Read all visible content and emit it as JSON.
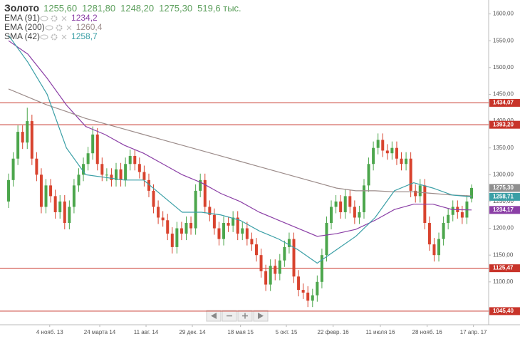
{
  "chart_data": {
    "type": "candlestick",
    "title": "Золото",
    "header_values": [
      "1255,60",
      "1281,80",
      "1248,20",
      "1275,30",
      "519,6 тыс."
    ],
    "header_color": "#5a9e5a",
    "up_color": "#4ca64c",
    "down_color": "#d8432e",
    "xlim": [
      0,
      99
    ],
    "xticks": [
      {
        "value": 8.8,
        "label": "4 нояб. 13"
      },
      {
        "value": 19.5,
        "label": "24 марта 14"
      },
      {
        "value": 29.4,
        "label": "11 авг. 14"
      },
      {
        "value": 39.3,
        "label": "29 дек. 14"
      },
      {
        "value": 49.6,
        "label": "18 мая 15"
      },
      {
        "value": 59.4,
        "label": "5 окт. 15"
      },
      {
        "value": 69.4,
        "label": "22 февр. 16"
      },
      {
        "value": 79.5,
        "label": "11 июля 16"
      },
      {
        "value": 89.5,
        "label": "28 нояб. 16"
      },
      {
        "value": 99.4,
        "label": "17 апр. 17"
      }
    ],
    "ylim": [
      1020,
      1626
    ],
    "yticks": [
      {
        "value": 1600,
        "label": "1600,00"
      },
      {
        "value": 1550,
        "label": "1550,00"
      },
      {
        "value": 1500,
        "label": "1500,00"
      },
      {
        "value": 1450,
        "label": "1450,00"
      },
      {
        "value": 1400,
        "label": "1400,00"
      },
      {
        "value": 1350,
        "label": "1350,00"
      },
      {
        "value": 1300,
        "label": "1300,00"
      },
      {
        "value": 1250,
        "label": "1250,00"
      },
      {
        "value": 1200,
        "label": "1200,00"
      },
      {
        "value": 1150,
        "label": "1150,00"
      },
      {
        "value": 1100,
        "label": "1100,00"
      }
    ],
    "open": [
      1250,
      1290,
      1330,
      1380,
      1360,
      1400,
      1330,
      1300,
      1240,
      1280,
      1260,
      1230,
      1250,
      1210,
      1240,
      1280,
      1300,
      1320,
      1340,
      1375,
      1320,
      1300,
      1300,
      1290,
      1310,
      1290,
      1320,
      1335,
      1320,
      1305,
      1290,
      1270,
      1240,
      1220,
      1215,
      1190,
      1165,
      1200,
      1190,
      1210,
      1200,
      1270,
      1290,
      1240,
      1225,
      1200,
      1180,
      1210,
      1205,
      1220,
      1190,
      1200,
      1180,
      1170,
      1150,
      1120,
      1095,
      1130,
      1115,
      1140,
      1165,
      1180,
      1110,
      1085,
      1080,
      1065,
      1075,
      1100,
      1150,
      1210,
      1240,
      1250,
      1230,
      1260,
      1240,
      1220,
      1230,
      1280,
      1320,
      1350,
      1365,
      1345,
      1340,
      1350,
      1330,
      1320,
      1330,
      1270,
      1260,
      1280,
      1210,
      1170,
      1150,
      1180,
      1210,
      1225,
      1240,
      1230,
      1220,
      1255.6
    ],
    "high": [
      1302,
      1342,
      1392,
      1392,
      1425,
      1412,
      1342,
      1312,
      1292,
      1292,
      1272,
      1262,
      1262,
      1252,
      1292,
      1312,
      1332,
      1352,
      1390,
      1387,
      1332,
      1312,
      1312,
      1322,
      1322,
      1332,
      1347,
      1347,
      1332,
      1317,
      1302,
      1282,
      1252,
      1232,
      1227,
      1202,
      1212,
      1212,
      1222,
      1222,
      1282,
      1302,
      1302,
      1252,
      1237,
      1212,
      1222,
      1222,
      1232,
      1232,
      1212,
      1212,
      1192,
      1182,
      1162,
      1132,
      1142,
      1142,
      1152,
      1177,
      1192,
      1192,
      1122,
      1097,
      1092,
      1087,
      1112,
      1162,
      1222,
      1252,
      1262,
      1262,
      1272,
      1272,
      1252,
      1242,
      1292,
      1332,
      1362,
      1377,
      1377,
      1357,
      1362,
      1362,
      1342,
      1342,
      1342,
      1282,
      1292,
      1292,
      1222,
      1182,
      1192,
      1222,
      1237,
      1252,
      1252,
      1242,
      1262,
      1281.8
    ],
    "low": [
      1238,
      1278,
      1318,
      1348,
      1348,
      1318,
      1288,
      1228,
      1228,
      1248,
      1218,
      1218,
      1198,
      1198,
      1228,
      1268,
      1288,
      1308,
      1328,
      1308,
      1288,
      1288,
      1278,
      1278,
      1278,
      1278,
      1308,
      1308,
      1293,
      1278,
      1258,
      1228,
      1208,
      1203,
      1178,
      1153,
      1153,
      1178,
      1178,
      1188,
      1188,
      1258,
      1228,
      1213,
      1188,
      1168,
      1168,
      1193,
      1193,
      1178,
      1178,
      1168,
      1158,
      1138,
      1108,
      1083,
      1083,
      1103,
      1103,
      1128,
      1153,
      1098,
      1073,
      1068,
      1053,
      1053,
      1063,
      1088,
      1138,
      1198,
      1228,
      1218,
      1218,
      1228,
      1208,
      1208,
      1218,
      1268,
      1308,
      1338,
      1333,
      1328,
      1328,
      1318,
      1308,
      1308,
      1258,
      1248,
      1248,
      1198,
      1158,
      1138,
      1138,
      1168,
      1198,
      1213,
      1218,
      1208,
      1208,
      1248.2
    ],
    "close": [
      1290,
      1330,
      1380,
      1360,
      1400,
      1330,
      1300,
      1240,
      1280,
      1260,
      1230,
      1250,
      1210,
      1240,
      1280,
      1300,
      1320,
      1340,
      1375,
      1320,
      1300,
      1300,
      1290,
      1310,
      1290,
      1320,
      1335,
      1320,
      1305,
      1290,
      1270,
      1240,
      1220,
      1215,
      1190,
      1165,
      1200,
      1190,
      1210,
      1200,
      1270,
      1290,
      1240,
      1225,
      1200,
      1180,
      1210,
      1205,
      1220,
      1190,
      1200,
      1180,
      1170,
      1150,
      1120,
      1095,
      1130,
      1115,
      1140,
      1165,
      1180,
      1110,
      1085,
      1080,
      1065,
      1075,
      1100,
      1150,
      1210,
      1240,
      1250,
      1230,
      1260,
      1240,
      1220,
      1230,
      1280,
      1320,
      1350,
      1365,
      1345,
      1340,
      1350,
      1330,
      1320,
      1330,
      1270,
      1260,
      1280,
      1210,
      1170,
      1150,
      1180,
      1210,
      1225,
      1240,
      1230,
      1220,
      1250,
      1275.3
    ],
    "indicators": [
      {
        "name": "EMA (91)",
        "legend_value": "1234,2",
        "color": "#8b3fa6",
        "values": [
          1550,
          1525,
          1480,
          1430,
          1390,
          1375,
          1355,
          1340,
          1320,
          1300,
          1285,
          1265,
          1250,
          1230,
          1215,
          1200,
          1185,
          1190,
          1198,
          1215,
          1235,
          1245,
          1245,
          1235,
          1234.2
        ]
      },
      {
        "name": "EMA (200)",
        "legend_value": "1260,4",
        "color": "#9c8c8a",
        "values": [
          1460,
          1445,
          1430,
          1418,
          1405,
          1395,
          1385,
          1375,
          1365,
          1355,
          1345,
          1335,
          1325,
          1315,
          1305,
          1295,
          1285,
          1275,
          1270,
          1270,
          1268,
          1268,
          1265,
          1262,
          1260.4
        ]
      },
      {
        "name": "SMA (42)",
        "legend_value": "1258,7",
        "color": "#3a9fa6",
        "values": [
          1560,
          1510,
          1450,
          1350,
          1300,
          1295,
          1290,
          1290,
          1260,
          1230,
          1230,
          1225,
          1215,
          1195,
          1180,
          1160,
          1135,
          1160,
          1185,
          1220,
          1270,
          1285,
          1275,
          1262,
          1258.7
        ]
      }
    ],
    "levels": [
      {
        "value": 1434.07,
        "label": "1434,07"
      },
      {
        "value": 1393.2,
        "label": "1393,20"
      },
      {
        "value": 1125.47,
        "label": "1125,47"
      },
      {
        "value": 1045.4,
        "label": "1045,40"
      }
    ],
    "level_color": "#c8342a",
    "price_tags": [
      {
        "value": 1275.3,
        "label": "1275,30",
        "color": "#8f8f8f"
      },
      {
        "value": 1258.71,
        "label": "1258,71",
        "color": "#3a9fa6"
      },
      {
        "value": 1234.17,
        "label": "1234,17",
        "color": "#8b3fa6"
      }
    ]
  }
}
